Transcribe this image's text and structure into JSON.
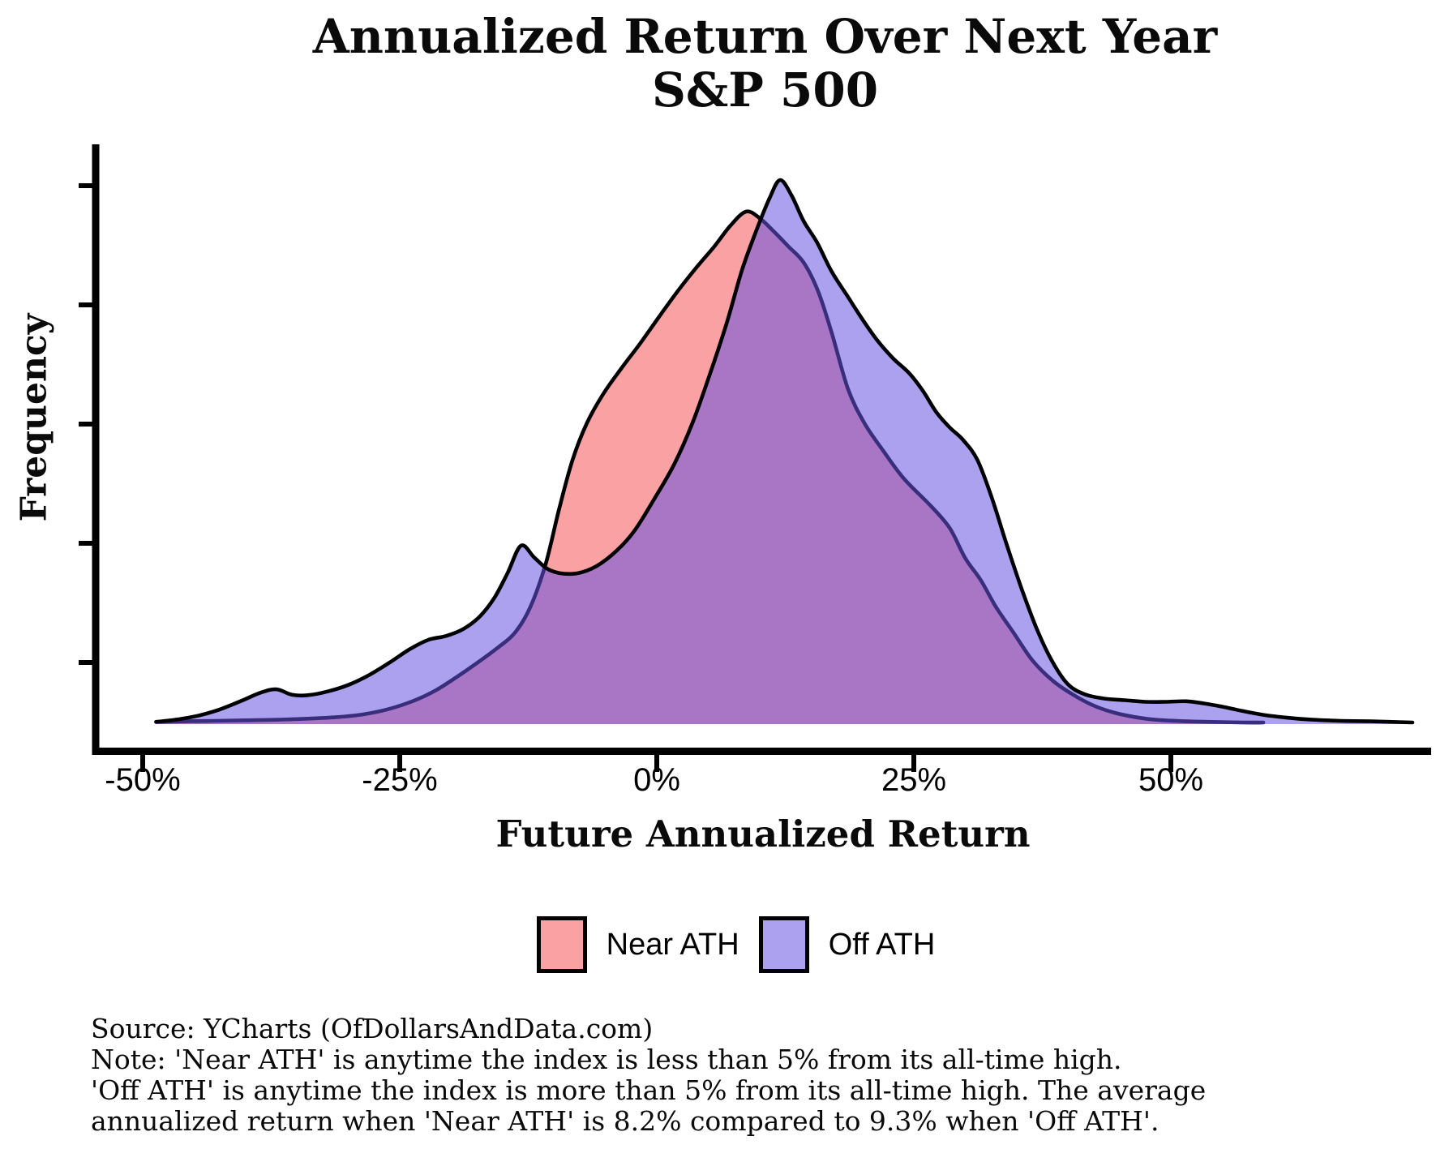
{
  "title": {
    "line1": "Annualized Return Over Next Year",
    "line2": "S&P 500"
  },
  "axes": {
    "x_label": "Future Annualized Return",
    "y_label": "Frequency",
    "x_tick_labels": [
      "-50%",
      "-25%",
      "0%",
      "25%",
      "50%"
    ],
    "x_tick_values": [
      -50,
      -25,
      0,
      25,
      50
    ],
    "y_tick_count": 5
  },
  "legend": {
    "items": [
      {
        "label": "Near ATH",
        "swatch_color": "#F9A1A3"
      },
      {
        "label": "Off ATH",
        "swatch_color": "#ABA1EF"
      }
    ]
  },
  "footnote": {
    "lines": [
      "Source: YCharts (OfDollarsAndData.com)",
      "Note: 'Near ATH' is anytime the index is less than 5% from its all-time high.",
      "'Off ATH' is anytime the index is more than 5% from its all-time high. The average",
      "annualized return when 'Near ATH' is 8.2% compared to 9.3% when 'Off ATH'."
    ]
  },
  "chart_data": {
    "type": "area",
    "subtype": "overlapping-density",
    "title": "Annualized Return Over Next Year S&P 500",
    "xlabel": "Future Annualized Return",
    "ylabel": "Frequency",
    "x_unit": "percent",
    "xlim": [
      -55,
      76
    ],
    "x_ticks": [
      -50,
      -25,
      0,
      25,
      50
    ],
    "y_axis_note": "unlabeled frequency axis; values normalized so Off ATH peak = 1",
    "grid": false,
    "legend_position": "bottom-center",
    "averages": {
      "Near ATH": "8.2%",
      "Off ATH": "9.3%"
    },
    "series": [
      {
        "name": "Near ATH",
        "fill": "#F9A1A3",
        "stroke": "#000000",
        "points": [
          [
            -48.7,
            0.004
          ],
          [
            -46,
            0.005
          ],
          [
            -43,
            0.006
          ],
          [
            -40,
            0.007
          ],
          [
            -37,
            0.008
          ],
          [
            -34,
            0.01
          ],
          [
            -31,
            0.013
          ],
          [
            -28.5,
            0.018
          ],
          [
            -26,
            0.028
          ],
          [
            -23.5,
            0.044
          ],
          [
            -21.5,
            0.062
          ],
          [
            -19.5,
            0.086
          ],
          [
            -17.5,
            0.112
          ],
          [
            -15.5,
            0.14
          ],
          [
            -13.8,
            0.168
          ],
          [
            -12.3,
            0.215
          ],
          [
            -10.8,
            0.295
          ],
          [
            -9.5,
            0.395
          ],
          [
            -8.2,
            0.485
          ],
          [
            -6.8,
            0.553
          ],
          [
            -5.2,
            0.607
          ],
          [
            -3.4,
            0.655
          ],
          [
            -1.6,
            0.7
          ],
          [
            0.2,
            0.748
          ],
          [
            2,
            0.795
          ],
          [
            3.8,
            0.838
          ],
          [
            5.6,
            0.878
          ],
          [
            7.2,
            0.917
          ],
          [
            8.7,
            0.942
          ],
          [
            10,
            0.93
          ],
          [
            11.4,
            0.905
          ],
          [
            12.8,
            0.878
          ],
          [
            14.3,
            0.848
          ],
          [
            15.7,
            0.795
          ],
          [
            17,
            0.72
          ],
          [
            18.6,
            0.616
          ],
          [
            20.2,
            0.553
          ],
          [
            22,
            0.503
          ],
          [
            24,
            0.452
          ],
          [
            26.7,
            0.4
          ],
          [
            28.5,
            0.36
          ],
          [
            30,
            0.305
          ],
          [
            31.5,
            0.265
          ],
          [
            33,
            0.215
          ],
          [
            34.7,
            0.168
          ],
          [
            36.5,
            0.118
          ],
          [
            38.5,
            0.08
          ],
          [
            40.5,
            0.054
          ],
          [
            42.5,
            0.034
          ],
          [
            44.5,
            0.021
          ],
          [
            46.5,
            0.013
          ],
          [
            48.5,
            0.008
          ],
          [
            51,
            0.0055
          ],
          [
            54,
            0.004
          ],
          [
            57,
            0.003
          ],
          [
            59,
            0.003
          ]
        ]
      },
      {
        "name": "Off ATH",
        "fill": "rgba(102,84,225,0.55)",
        "stroke": "#000000",
        "points": [
          [
            -48.7,
            0.004
          ],
          [
            -46.5,
            0.009
          ],
          [
            -44.5,
            0.016
          ],
          [
            -42.5,
            0.027
          ],
          [
            -40.5,
            0.042
          ],
          [
            -38.5,
            0.058
          ],
          [
            -37,
            0.064
          ],
          [
            -35.5,
            0.054
          ],
          [
            -34,
            0.053
          ],
          [
            -32,
            0.06
          ],
          [
            -30,
            0.072
          ],
          [
            -28,
            0.09
          ],
          [
            -26,
            0.113
          ],
          [
            -24,
            0.138
          ],
          [
            -22.2,
            0.155
          ],
          [
            -20.5,
            0.162
          ],
          [
            -18.8,
            0.175
          ],
          [
            -17.2,
            0.198
          ],
          [
            -15.8,
            0.232
          ],
          [
            -14.5,
            0.278
          ],
          [
            -13.2,
            0.328
          ],
          [
            -11.9,
            0.306
          ],
          [
            -10.4,
            0.283
          ],
          [
            -8.3,
            0.276
          ],
          [
            -6.3,
            0.286
          ],
          [
            -4.3,
            0.312
          ],
          [
            -2.3,
            0.352
          ],
          [
            -0.3,
            0.412
          ],
          [
            1.7,
            0.478
          ],
          [
            3.5,
            0.555
          ],
          [
            5.2,
            0.645
          ],
          [
            6.8,
            0.737
          ],
          [
            8.3,
            0.835
          ],
          [
            9.7,
            0.908
          ],
          [
            11,
            0.968
          ],
          [
            12,
            1.0
          ],
          [
            13.1,
            0.972
          ],
          [
            14.3,
            0.924
          ],
          [
            15.6,
            0.885
          ],
          [
            17,
            0.832
          ],
          [
            18.5,
            0.788
          ],
          [
            20,
            0.744
          ],
          [
            21.5,
            0.704
          ],
          [
            23,
            0.672
          ],
          [
            24.6,
            0.644
          ],
          [
            25.9,
            0.612
          ],
          [
            27.2,
            0.573
          ],
          [
            28.5,
            0.545
          ],
          [
            29.8,
            0.522
          ],
          [
            31.2,
            0.485
          ],
          [
            32.6,
            0.415
          ],
          [
            34,
            0.332
          ],
          [
            35.5,
            0.248
          ],
          [
            37,
            0.173
          ],
          [
            38.5,
            0.114
          ],
          [
            40,
            0.073
          ],
          [
            41.6,
            0.055
          ],
          [
            43.5,
            0.047
          ],
          [
            45.5,
            0.044
          ],
          [
            47.5,
            0.041
          ],
          [
            49.5,
            0.041
          ],
          [
            51.5,
            0.042
          ],
          [
            53.2,
            0.038
          ],
          [
            55,
            0.032
          ],
          [
            57,
            0.024
          ],
          [
            59,
            0.017
          ],
          [
            61.2,
            0.012
          ],
          [
            63.8,
            0.008
          ],
          [
            66.5,
            0.006
          ],
          [
            69.5,
            0.005
          ],
          [
            73.5,
            0.003
          ]
        ]
      }
    ]
  }
}
